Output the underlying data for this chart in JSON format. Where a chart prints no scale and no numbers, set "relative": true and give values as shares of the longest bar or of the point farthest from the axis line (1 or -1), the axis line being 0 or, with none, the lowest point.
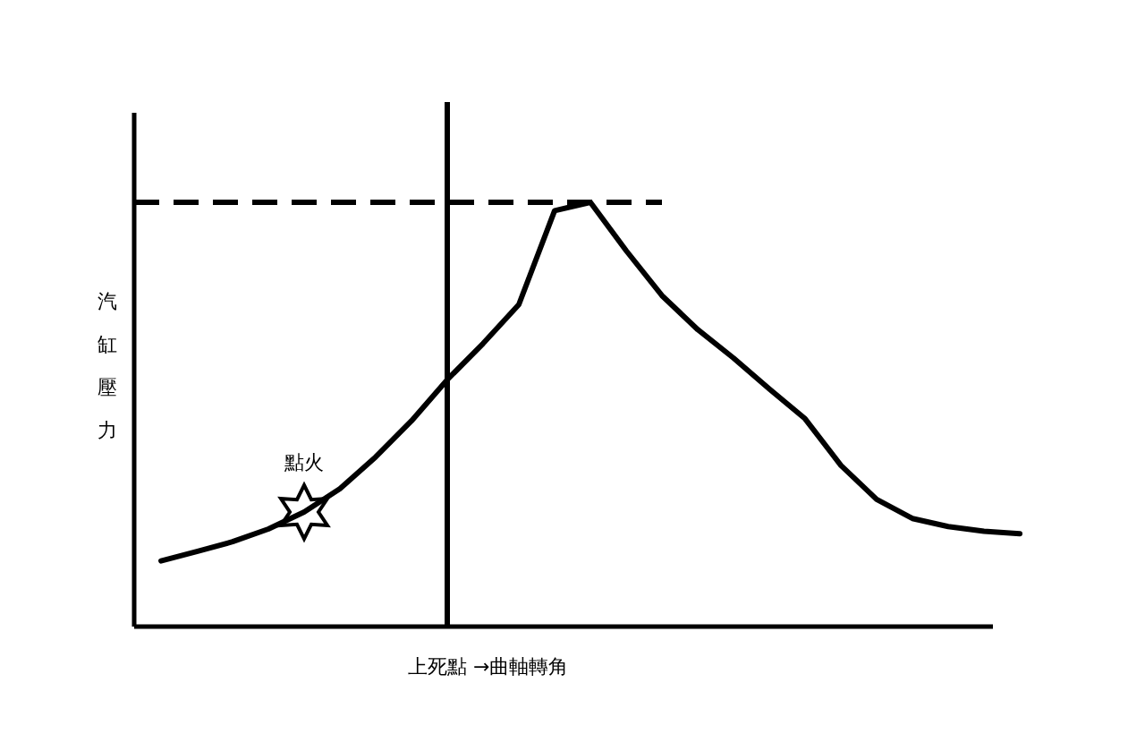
{
  "chart_data": {
    "type": "line",
    "relative": true,
    "ylabel": "汽缸壓力",
    "xlabel": "上死點 →曲軸轉角",
    "categories": [
      null,
      null,
      null,
      null,
      null,
      null,
      null,
      null,
      null,
      null,
      null,
      null,
      null,
      null,
      null,
      null,
      null,
      null,
      null,
      null,
      null,
      null,
      null,
      null,
      null
    ],
    "series": [
      {
        "color": "#000000",
        "values": [
          0.155,
          0.177,
          0.2,
          0.23,
          0.27,
          0.325,
          0.4,
          0.485,
          0.582,
          0.667,
          0.759,
          0.98,
          1.0,
          0.886,
          0.78,
          0.7,
          0.633,
          0.56,
          0.49,
          0.38,
          0.3,
          0.255,
          0.236,
          0.225,
          0.219
        ]
      }
    ],
    "ref_lines": [
      {
        "axis": "y",
        "value": 1.0,
        "color": "#000000",
        "line_style": "dashed"
      }
    ],
    "annotations": [
      {
        "text": "點火",
        "y": 0.27
      }
    ],
    "grid": false,
    "marker": "none",
    "line_style": "solid"
  }
}
